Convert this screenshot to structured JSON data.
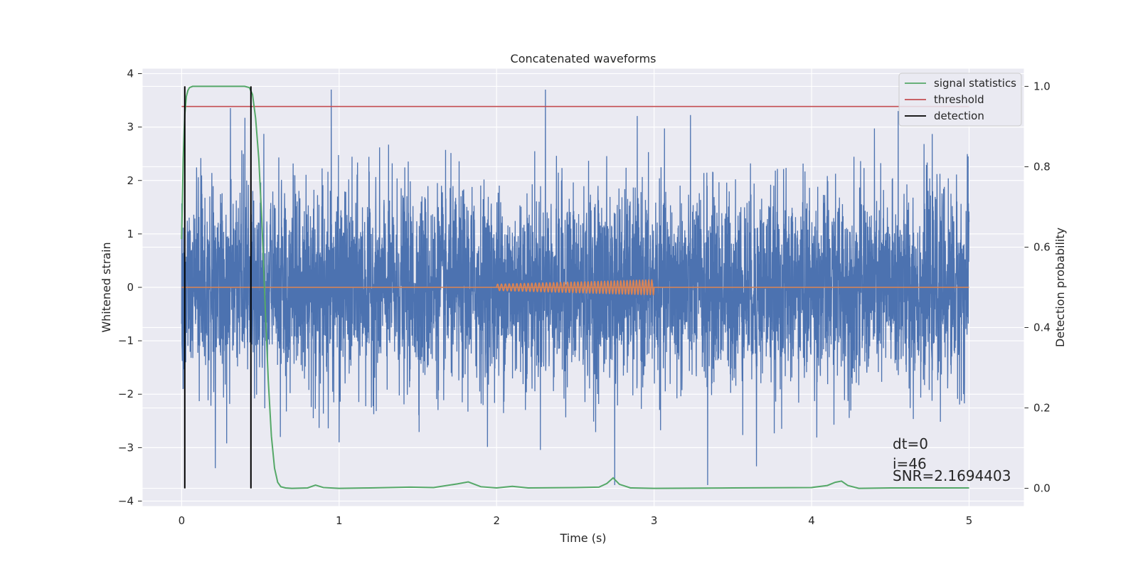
{
  "chart_data": {
    "type": "line",
    "title": "Concatenated waveforms",
    "xlabel": "Time (s)",
    "ylabel": "Whitened strain",
    "ylabel_right": "Detection probability",
    "xlim": [
      -0.25,
      5.35
    ],
    "ylim": [
      -4.1,
      4.1
    ],
    "ylim_right": [
      -0.045,
      1.045
    ],
    "x_ticks": [
      0,
      1,
      2,
      3,
      4,
      5
    ],
    "y_ticks": [
      -4,
      -3,
      -2,
      -1,
      0,
      1,
      2,
      3,
      4
    ],
    "y_ticks_right": [
      0.0,
      0.2,
      0.4,
      0.6,
      0.8,
      1.0
    ],
    "y_tick_labels": [
      "−4",
      "−3",
      "−2",
      "−1",
      "0",
      "1",
      "2",
      "3",
      "4"
    ],
    "y_tick_labels_right": [
      "0.0",
      "0.2",
      "0.4",
      "0.6",
      "0.8",
      "1.0"
    ],
    "grid": true,
    "legend_position": "top-right",
    "noise_series": {
      "axis": "left",
      "color": "#4c72b0",
      "x_range": [
        0,
        5
      ],
      "std": 0.9,
      "max_abs": 3.7,
      "spikes": [
        {
          "x": 0.95,
          "y": 3.7
        },
        {
          "x": 2.31,
          "y": 3.7
        },
        {
          "x": 2.75,
          "y": -3.7
        },
        {
          "x": 3.34,
          "y": -3.7
        },
        {
          "x": 1.0,
          "y": -2.9
        },
        {
          "x": 3.65,
          "y": -3.35
        },
        {
          "x": 4.55,
          "y": 3.3
        }
      ]
    },
    "waveform_series": {
      "axis": "left",
      "color": "#dd8452",
      "x_start": 2.0,
      "x_end": 3.0,
      "amp_start": 0.06,
      "amp_end": 0.14,
      "cycles": 40
    },
    "series": [
      {
        "name": "signal statistics",
        "axis": "right",
        "color": "#55a868",
        "x": [
          0.0,
          0.01,
          0.02,
          0.03,
          0.04,
          0.05,
          0.07,
          0.1,
          0.2,
          0.3,
          0.4,
          0.43,
          0.45,
          0.47,
          0.49,
          0.51,
          0.53,
          0.55,
          0.57,
          0.59,
          0.61,
          0.63,
          0.66,
          0.7,
          0.8,
          0.85,
          0.9,
          1.0,
          1.2,
          1.45,
          1.6,
          1.75,
          1.82,
          1.9,
          2.0,
          2.1,
          2.2,
          2.5,
          2.65,
          2.7,
          2.74,
          2.78,
          2.85,
          3.0,
          3.5,
          4.0,
          4.1,
          4.15,
          4.19,
          4.23,
          4.3,
          4.5,
          5.0
        ],
        "values": [
          0.62,
          0.82,
          0.93,
          0.975,
          0.99,
          0.997,
          1.0,
          1.0,
          1.0,
          1.0,
          1.0,
          0.997,
          0.98,
          0.92,
          0.82,
          0.66,
          0.46,
          0.27,
          0.13,
          0.05,
          0.015,
          0.004,
          0.001,
          0.0,
          0.001,
          0.008,
          0.002,
          0.0,
          0.001,
          0.003,
          0.002,
          0.011,
          0.016,
          0.004,
          0.001,
          0.005,
          0.001,
          0.002,
          0.003,
          0.012,
          0.026,
          0.01,
          0.001,
          0.0,
          0.001,
          0.002,
          0.007,
          0.015,
          0.018,
          0.007,
          0.0,
          0.001,
          0.001
        ]
      },
      {
        "name": "threshold",
        "axis": "right",
        "color": "#c44e52",
        "x": [
          0,
          5
        ],
        "values": [
          0.95,
          0.95
        ]
      },
      {
        "name": "detection",
        "axis": "right",
        "color": "#000000",
        "segments": [
          {
            "x": 0.02,
            "from": 0.0,
            "to": 1.0
          },
          {
            "x": 0.44,
            "from": 0.0,
            "to": 1.0
          }
        ]
      }
    ],
    "annotations": [
      "dt=0",
      "i=46",
      "SNR=2.1694403"
    ]
  }
}
